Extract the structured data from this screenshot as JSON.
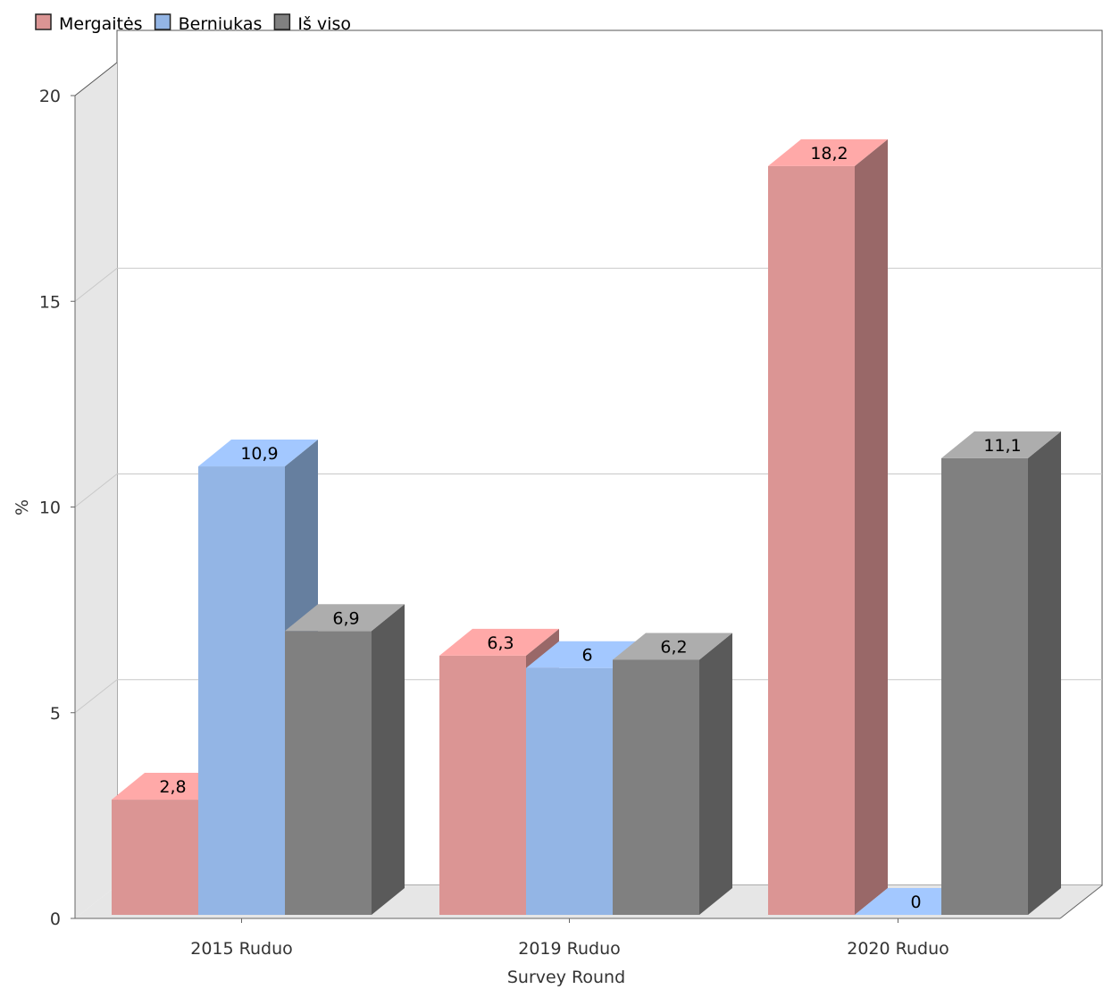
{
  "chart_data": {
    "type": "bar",
    "categories": [
      "2015 Ruduo",
      "2019 Ruduo",
      "2020 Ruduo"
    ],
    "series": [
      {
        "name": "Mergaitės",
        "values": [
          2.8,
          6.3,
          18.2
        ],
        "value_labels": [
          "2,8",
          "6,3",
          "18,2"
        ]
      },
      {
        "name": "Berniukas",
        "values": [
          10.9,
          6,
          0
        ],
        "value_labels": [
          "10,9",
          "6",
          "0"
        ]
      },
      {
        "name": "Iš viso",
        "values": [
          6.9,
          6.2,
          11.1
        ],
        "value_labels": [
          "6,9",
          "6,2",
          "11,1"
        ]
      }
    ],
    "xlabel": "Survey Round",
    "ylabel": "%",
    "ylim": [
      0,
      20
    ],
    "yticks": [
      "0",
      "5",
      "10",
      "15",
      "20"
    ],
    "grid": true,
    "legend_position": "top-left",
    "style": "3d",
    "colors": {
      "series": [
        "#db9594",
        "#93b5e5",
        "#808080"
      ],
      "series_top": [
        "#ffa9a8",
        "#a3c8ff",
        "#adadad"
      ],
      "series_side": [
        "#996868",
        "#667f9f",
        "#5a5a5a"
      ],
      "wall": "#e6e6e6",
      "gridline": "#c8c8c8",
      "axis": "#666666"
    }
  }
}
